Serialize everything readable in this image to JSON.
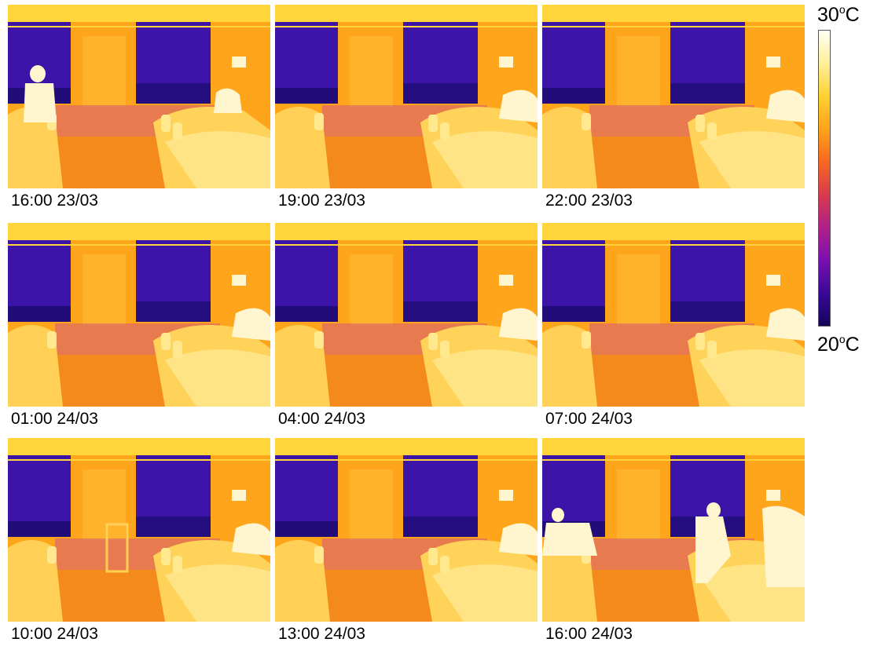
{
  "panels": [
    {
      "time": "16:00 23/03",
      "people": "seated-patient-left,nurse-right"
    },
    {
      "time": "19:00 23/03",
      "people": "patient-in-bed"
    },
    {
      "time": "22:00 23/03",
      "people": "patient-in-bed"
    },
    {
      "time": "01:00 24/03",
      "people": "patient-in-bed"
    },
    {
      "time": "04:00 24/03",
      "people": "patient-in-bed"
    },
    {
      "time": "07:00 24/03",
      "people": "patient-in-bed"
    },
    {
      "time": "10:00 24/03",
      "people": "trolley,patient"
    },
    {
      "time": "13:00 24/03",
      "people": "patient-in-bed"
    },
    {
      "time": "16:00 24/03",
      "people": "staff-standing,staff-right"
    }
  ],
  "scale": {
    "max_value": "30",
    "min_value": "20",
    "unit_sup": "o",
    "unit": "C",
    "colors": [
      "#fffff4",
      "#fff09a",
      "#ffd030",
      "#ffa41a",
      "#f76820",
      "#d93a4e",
      "#b0208a",
      "#7a10b0",
      "#3a0898",
      "#14045a"
    ]
  },
  "palette": {
    "wall": "#ffa51c",
    "wall_light": "#ffbf3a",
    "ceiling": "#ffd53b",
    "window_dark": "#1a0a6e",
    "window": "#3c14a8",
    "floor": "#f58a1c",
    "baseboard": "#c94a8e",
    "hot": "#fff6d0"
  }
}
